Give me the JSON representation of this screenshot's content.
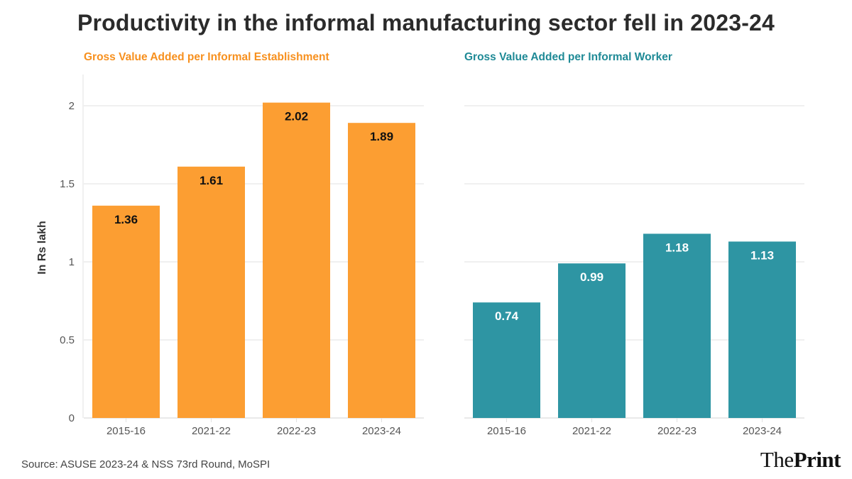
{
  "title": "Productivity in the informal manufacturing sector fell in 2023-24",
  "source": "Source: ASUSE 2023-24 & NSS 73rd Round, MoSPI",
  "logo": {
    "the": "The",
    "print": "Print"
  },
  "chart_data": [
    {
      "type": "bar",
      "title": "Gross Value Added per Informal Establishment",
      "title_color": "#F7901E",
      "bar_color": "#FC9E32",
      "label_color": "#111111",
      "xlabel": "",
      "ylabel": "In Rs lakh",
      "categories": [
        "2015-16",
        "2021-22",
        "2022-23",
        "2023-24"
      ],
      "values": [
        1.36,
        1.61,
        2.02,
        1.89
      ],
      "data_labels": [
        "1.36",
        "1.61",
        "2.02",
        "1.89"
      ],
      "ylim": [
        0,
        2.2
      ],
      "yticks": [
        0,
        0.5,
        1,
        1.5,
        2
      ],
      "ytick_labels": [
        "0",
        "0.5",
        "1",
        "1.5",
        "2"
      ],
      "grid": true,
      "show_yaxis": true
    },
    {
      "type": "bar",
      "title": "Gross Value Added per Informal Worker",
      "title_color": "#1F8A96",
      "bar_color": "#2E95A3",
      "label_color": "#ffffff",
      "xlabel": "",
      "ylabel": "",
      "categories": [
        "2015-16",
        "2021-22",
        "2022-23",
        "2023-24"
      ],
      "values": [
        0.74,
        0.99,
        1.18,
        1.13
      ],
      "data_labels": [
        "0.74",
        "0.99",
        "1.18",
        "1.13"
      ],
      "ylim": [
        0,
        2.2
      ],
      "yticks": [
        0,
        0.5,
        1,
        1.5,
        2
      ],
      "ytick_labels": [],
      "grid": true,
      "show_yaxis": false
    }
  ]
}
